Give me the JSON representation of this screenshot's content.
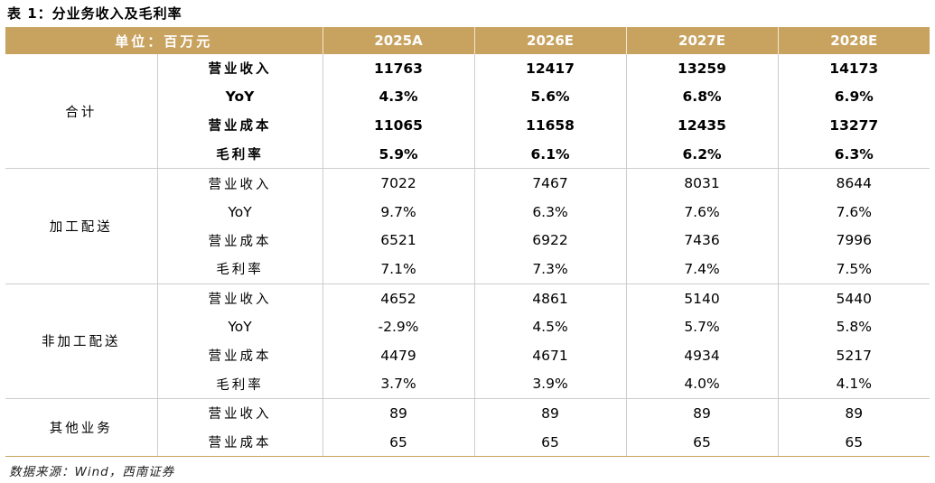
{
  "caption": "表 1：分业务收入及毛利率",
  "header": {
    "unit": "单位：百万元",
    "years": [
      "2025A",
      "2026E",
      "2027E",
      "2028E"
    ]
  },
  "groups": [
    {
      "name": "合计",
      "rows": [
        {
          "metric": "营业收入",
          "values": [
            "11763",
            "12417",
            "13259",
            "14173"
          ]
        },
        {
          "metric": "YoY",
          "values": [
            "4.3%",
            "5.6%",
            "6.8%",
            "6.9%"
          ]
        },
        {
          "metric": "营业成本",
          "values": [
            "11065",
            "11658",
            "12435",
            "13277"
          ]
        },
        {
          "metric": "毛利率",
          "values": [
            "5.9%",
            "6.1%",
            "6.2%",
            "6.3%"
          ]
        }
      ]
    },
    {
      "name": "加工配送",
      "rows": [
        {
          "metric": "营业收入",
          "values": [
            "7022",
            "7467",
            "8031",
            "8644"
          ]
        },
        {
          "metric": "YoY",
          "values": [
            "9.7%",
            "6.3%",
            "7.6%",
            "7.6%"
          ]
        },
        {
          "metric": "营业成本",
          "values": [
            "6521",
            "6922",
            "7436",
            "7996"
          ]
        },
        {
          "metric": "毛利率",
          "values": [
            "7.1%",
            "7.3%",
            "7.4%",
            "7.5%"
          ]
        }
      ]
    },
    {
      "name": "非加工配送",
      "rows": [
        {
          "metric": "营业收入",
          "values": [
            "4652",
            "4861",
            "5140",
            "5440"
          ]
        },
        {
          "metric": "YoY",
          "values": [
            "-2.9%",
            "4.5%",
            "5.7%",
            "5.8%"
          ]
        },
        {
          "metric": "营业成本",
          "values": [
            "4479",
            "4671",
            "4934",
            "5217"
          ]
        },
        {
          "metric": "毛利率",
          "values": [
            "3.7%",
            "3.9%",
            "4.0%",
            "4.1%"
          ]
        }
      ]
    },
    {
      "name": "其他业务",
      "rows": [
        {
          "metric": "营业收入",
          "values": [
            "89",
            "89",
            "89",
            "89"
          ]
        },
        {
          "metric": "营业成本",
          "values": [
            "65",
            "65",
            "65",
            "65"
          ]
        }
      ]
    }
  ],
  "source": "数据来源：Wind，西南证券",
  "colors": {
    "header_bg": "#c8a25f",
    "header_text": "#ffffff",
    "grid": "#cdcdcd"
  }
}
